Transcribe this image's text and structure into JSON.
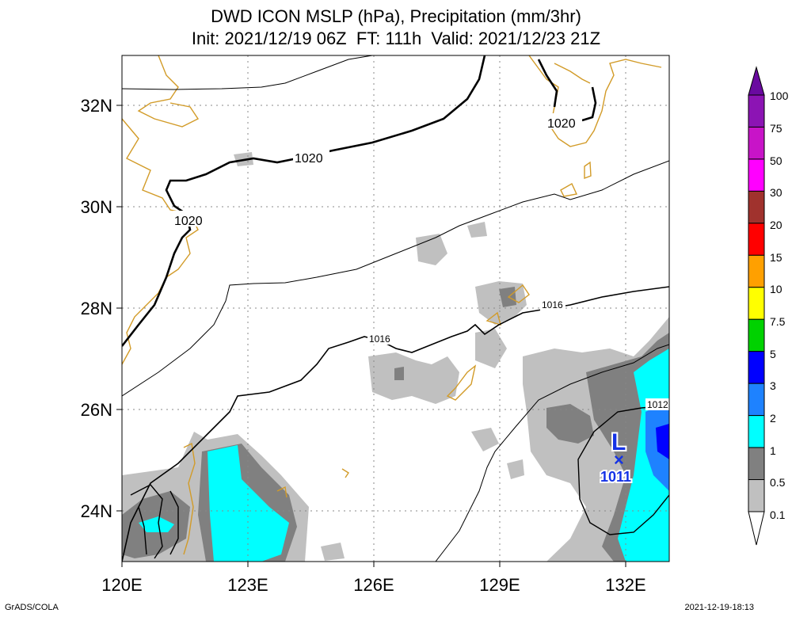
{
  "title": {
    "line1": "DWD ICON MSLP (hPa), Precipitation (mm/3hr)",
    "line2": "Init: 2021/12/19 06Z  FT: 111h  Valid: 2021/12/23 21Z"
  },
  "axes": {
    "lon_labels": [
      "120E",
      "123E",
      "126E",
      "129E",
      "132E"
    ],
    "lat_labels": [
      "32N",
      "30N",
      "28N",
      "26N",
      "24N"
    ],
    "lon_range": [
      120,
      133
    ],
    "lat_range": [
      23,
      33
    ]
  },
  "contours": {
    "label_1020_a": "1020",
    "label_1020_b": "1020",
    "label_1020_c": "1020",
    "label_1016_a": "1016",
    "label_1016_b": "1016",
    "label_1012": "1012"
  },
  "low_center": {
    "symbol": "L",
    "marker": "×",
    "pressure": "1011",
    "color": "#1432e6"
  },
  "colorbar": {
    "labels": [
      "100",
      "75",
      "50",
      "30",
      "20",
      "15",
      "10",
      "7.5",
      "5",
      "3",
      "2",
      "1",
      "0.5",
      "0.1"
    ],
    "colors": [
      "#6a0aa0",
      "#8c14b4",
      "#c814c8",
      "#ff00ff",
      "#a0322d",
      "#ff0000",
      "#ffa000",
      "#ffff00",
      "#00d200",
      "#0000ff",
      "#1e82ff",
      "#00ffff",
      "#808080",
      "#c0c0c0",
      "#ffffff"
    ]
  },
  "footer": {
    "left": "GrADS/COLA",
    "right": "2021-12-19-18:13"
  }
}
